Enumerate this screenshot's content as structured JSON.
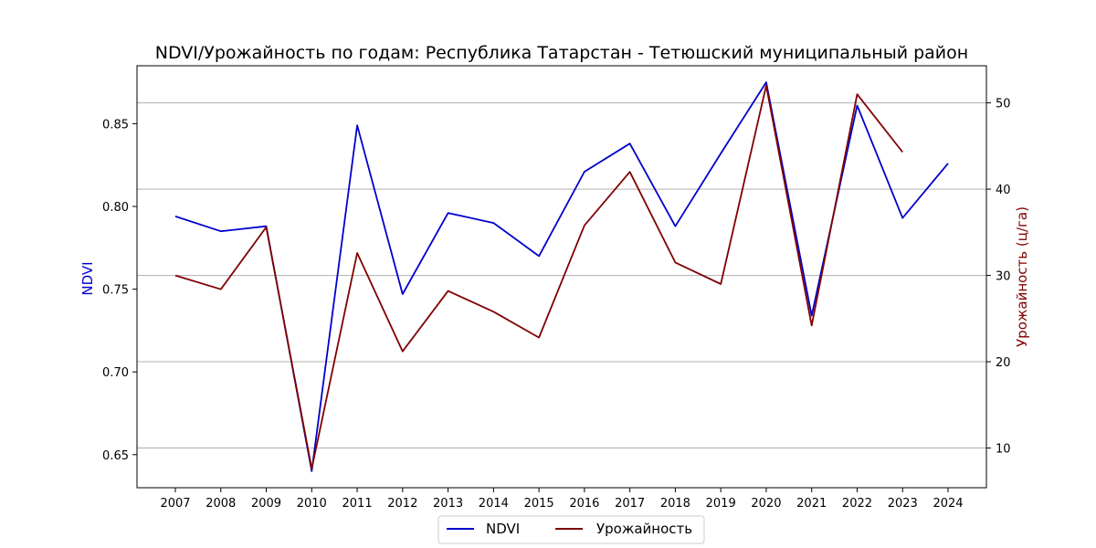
{
  "chart_data": {
    "type": "line",
    "title": "NDVI/Урожайность по годам: Республика Татарстан - Тетюшский муниципальный район",
    "ylabel_left": "NDVI",
    "ylabel_right": "Урожайность (ц/га)",
    "x": [
      2007,
      2008,
      2009,
      2010,
      2011,
      2012,
      2013,
      2014,
      2015,
      2016,
      2017,
      2018,
      2019,
      2020,
      2021,
      2022,
      2023,
      2024
    ],
    "ylim_left": [
      0.63,
      0.885
    ],
    "ylim_right": [
      5.4,
      54.3
    ],
    "yticks_left": [
      "0.65",
      "0.70",
      "0.75",
      "0.80",
      "0.85"
    ],
    "yticks_right": [
      "10",
      "20",
      "30",
      "40",
      "50"
    ],
    "grid": "horizontal (right axis)",
    "legend_position": "bottom-center",
    "series": [
      {
        "name": "NDVI",
        "axis": "left",
        "color": "#0000cd",
        "values": [
          0.794,
          0.785,
          0.788,
          0.64,
          0.849,
          0.747,
          0.796,
          0.79,
          0.77,
          0.821,
          0.838,
          0.788,
          0.832,
          0.875,
          0.734,
          0.861,
          0.793,
          0.826
        ]
      },
      {
        "name": "Урожайность",
        "axis": "right",
        "color": "#800000",
        "values": [
          30.0,
          28.4,
          35.6,
          7.6,
          32.6,
          21.2,
          28.2,
          25.8,
          22.8,
          35.8,
          42.0,
          31.5,
          29.0,
          52.0,
          24.2,
          51.0,
          44.3,
          null
        ]
      }
    ]
  }
}
